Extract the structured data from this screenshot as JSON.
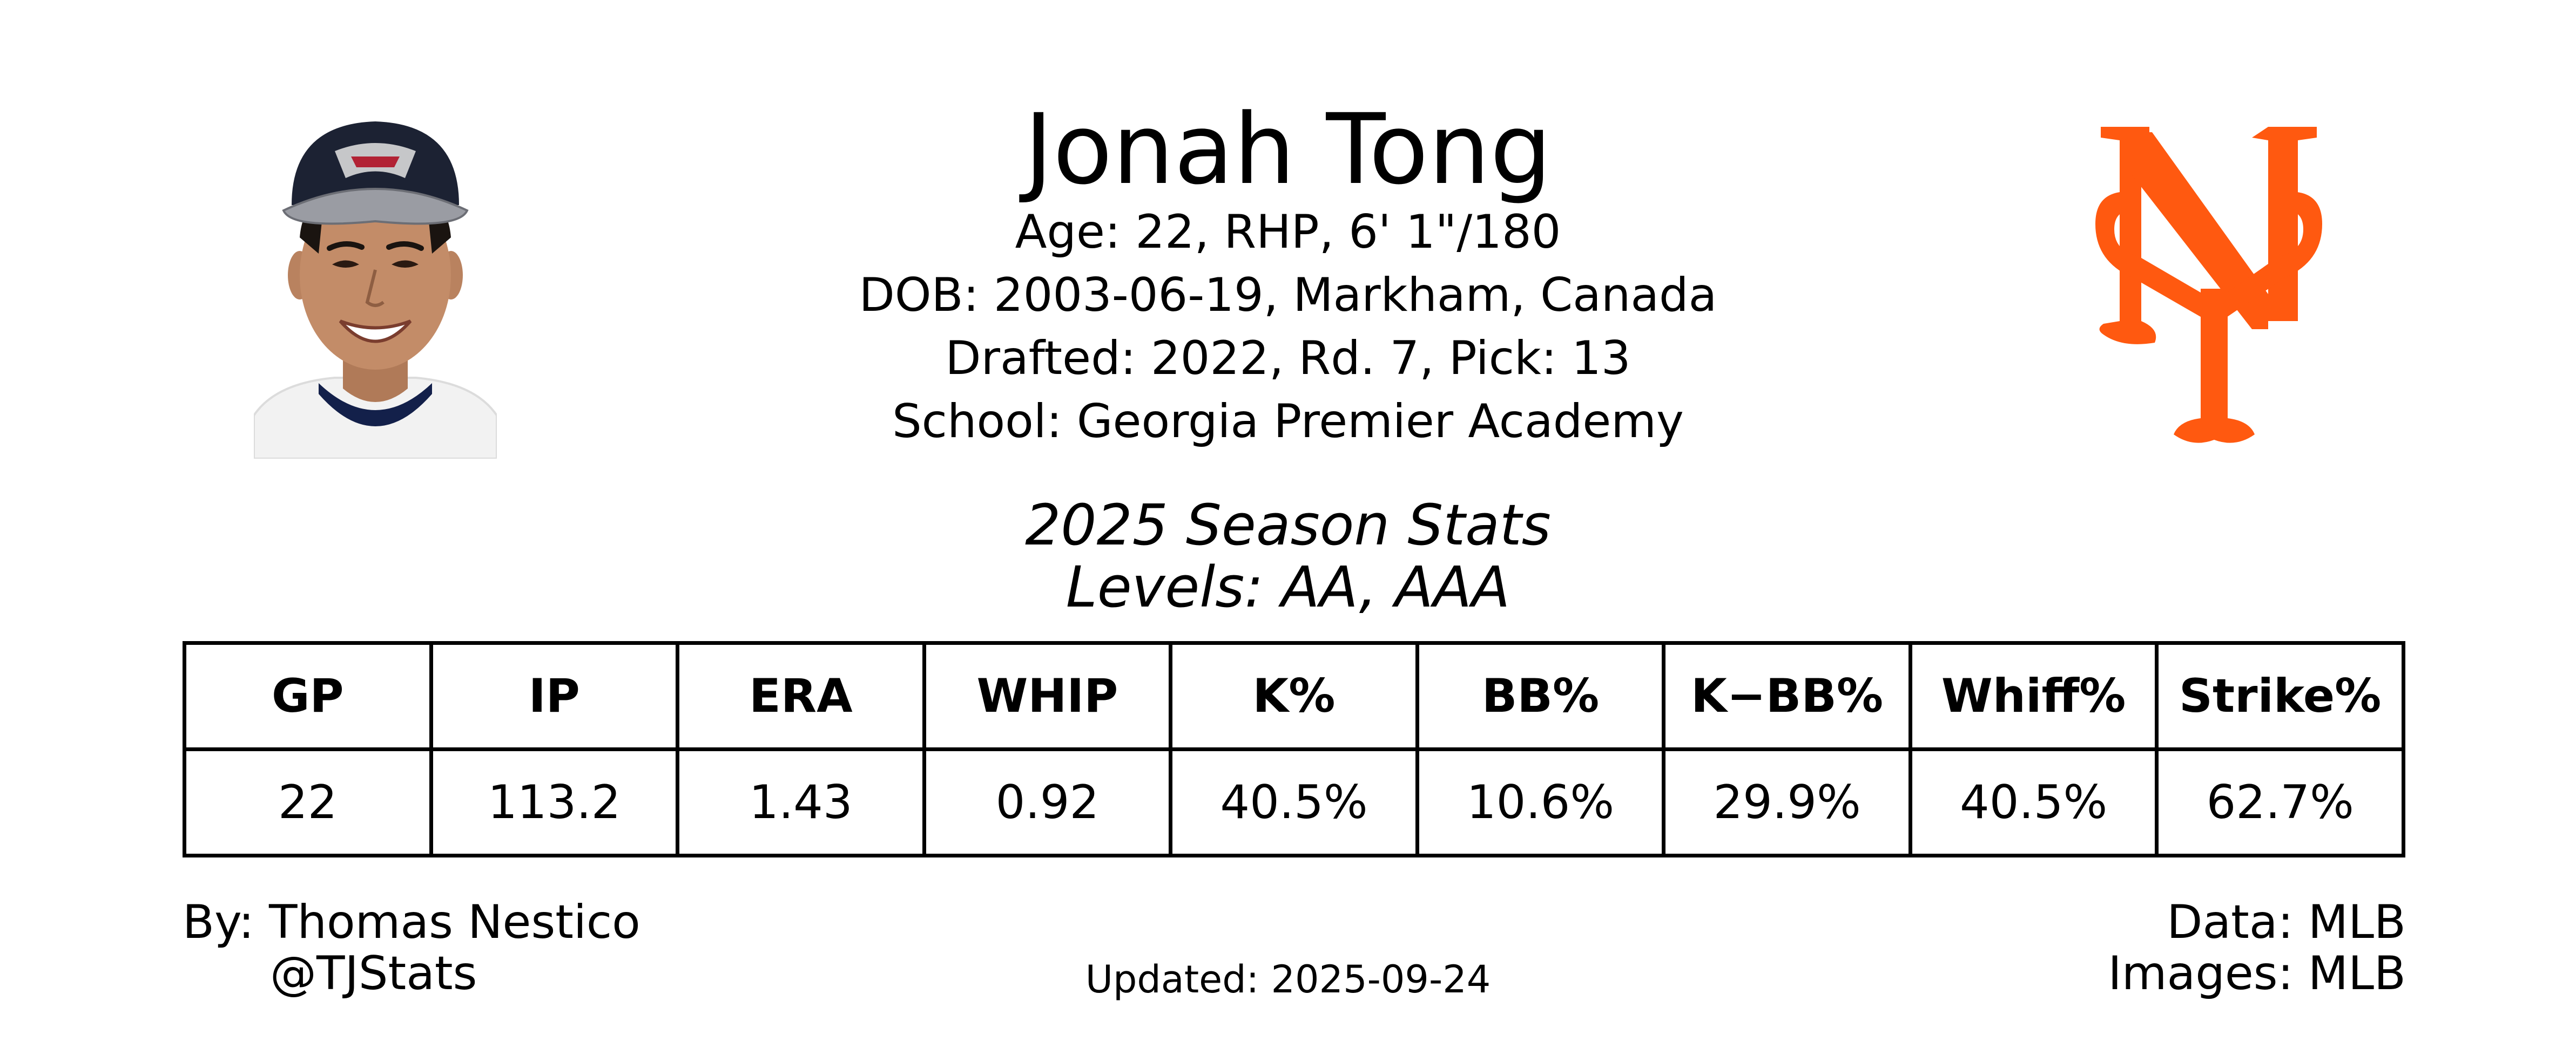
{
  "player": {
    "name": "Jonah Tong",
    "age_line": "Age: 22, RHP, 6' 1\"/180",
    "dob_line": "DOB: 2003-06-19, Markham, Canada",
    "drafted_line": "Drafted: 2022, Rd. 7, Pick: 13",
    "school_line": "School: Georgia Premier Academy"
  },
  "season": {
    "title": "2025 Season Stats",
    "levels": "Levels: AA, AAA"
  },
  "stats": {
    "headers": [
      "GP",
      "IP",
      "ERA",
      "WHIP",
      "K%",
      "BB%",
      "K−BB%",
      "Whiff%",
      "Strike%"
    ],
    "values": [
      "22",
      "113.2",
      "1.43",
      "0.92",
      "40.5%",
      "10.6%",
      "29.9%",
      "40.5%",
      "62.7%"
    ]
  },
  "footer": {
    "by": "By: Thomas Nestico",
    "handle": "@TJStats",
    "updated": "Updated: 2025-09-24",
    "data_source": "Data: MLB",
    "images_source": "Images: MLB"
  },
  "icons": {
    "photo": "player-headshot",
    "logo": "new-york-mets-ny-logo"
  },
  "colors": {
    "logo_orange": "#FF5910",
    "cap_navy": "#1c2233",
    "jersey_navy": "#13204a"
  }
}
